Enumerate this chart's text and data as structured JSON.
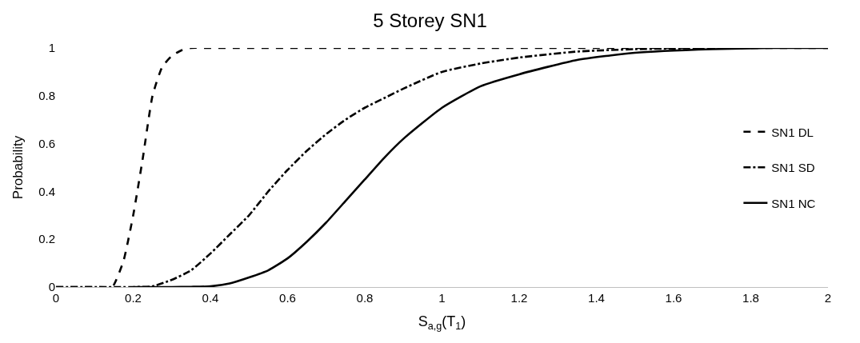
{
  "chart_data": {
    "type": "line",
    "title": "5 Storey SN1",
    "xlabel": "S$_{a,g}$(T$_{1}$)",
    "ylabel": "Probability",
    "xlim": [
      0,
      2
    ],
    "xticks": [
      0,
      0.2,
      0.4,
      0.6,
      0.8,
      1,
      1.2,
      1.4,
      1.6,
      1.8,
      2
    ],
    "ylim": [
      0,
      1
    ],
    "yticks": [
      0,
      0.2,
      0.4,
      0.6,
      0.8,
      1
    ],
    "grid": false,
    "legend": "right",
    "marker": "none",
    "series": [
      {
        "name": "SN1 DL",
        "color": "#000000",
        "line_style": "dashed",
        "x": [
          0,
          0.1,
          0.14,
          0.15,
          0.175,
          0.2,
          0.225,
          0.25,
          0.275,
          0.3,
          0.325,
          0.35,
          0.4,
          1,
          2
        ],
        "values": [
          0,
          0,
          0,
          0.01,
          0.11,
          0.3,
          0.54,
          0.8,
          0.92,
          0.967,
          0.99,
          1,
          1,
          1,
          1
        ]
      },
      {
        "name": "SN1 SD",
        "color": "#000000",
        "line_style": "dashdot",
        "x": [
          0,
          0.2,
          0.25,
          0.3,
          0.35,
          0.4,
          0.45,
          0.5,
          0.55,
          0.6,
          0.65,
          0.7,
          0.75,
          0.8,
          0.85,
          0.9,
          1,
          1.1,
          1.2,
          1.35,
          1.5,
          1.7
        ],
        "values": [
          0,
          0,
          0.003,
          0.03,
          0.07,
          0.14,
          0.22,
          0.3,
          0.4,
          0.49,
          0.57,
          0.64,
          0.7,
          0.75,
          0.79,
          0.83,
          0.9,
          0.935,
          0.96,
          0.985,
          0.995,
          1
        ]
      },
      {
        "name": "SN1 NC",
        "color": "#000000",
        "line_style": "solid",
        "x": [
          0.2,
          0.3,
          0.35,
          0.4,
          0.45,
          0.5,
          0.55,
          0.6,
          0.65,
          0.7,
          0.75,
          0.8,
          0.85,
          0.9,
          1,
          1.1,
          1.2,
          1.35,
          1.5,
          1.7,
          1.85,
          2
        ],
        "values": [
          0,
          0,
          0.001,
          0.003,
          0.015,
          0.04,
          0.07,
          0.12,
          0.19,
          0.27,
          0.36,
          0.45,
          0.54,
          0.62,
          0.75,
          0.84,
          0.89,
          0.95,
          0.98,
          0.995,
          1,
          1
        ]
      }
    ]
  }
}
